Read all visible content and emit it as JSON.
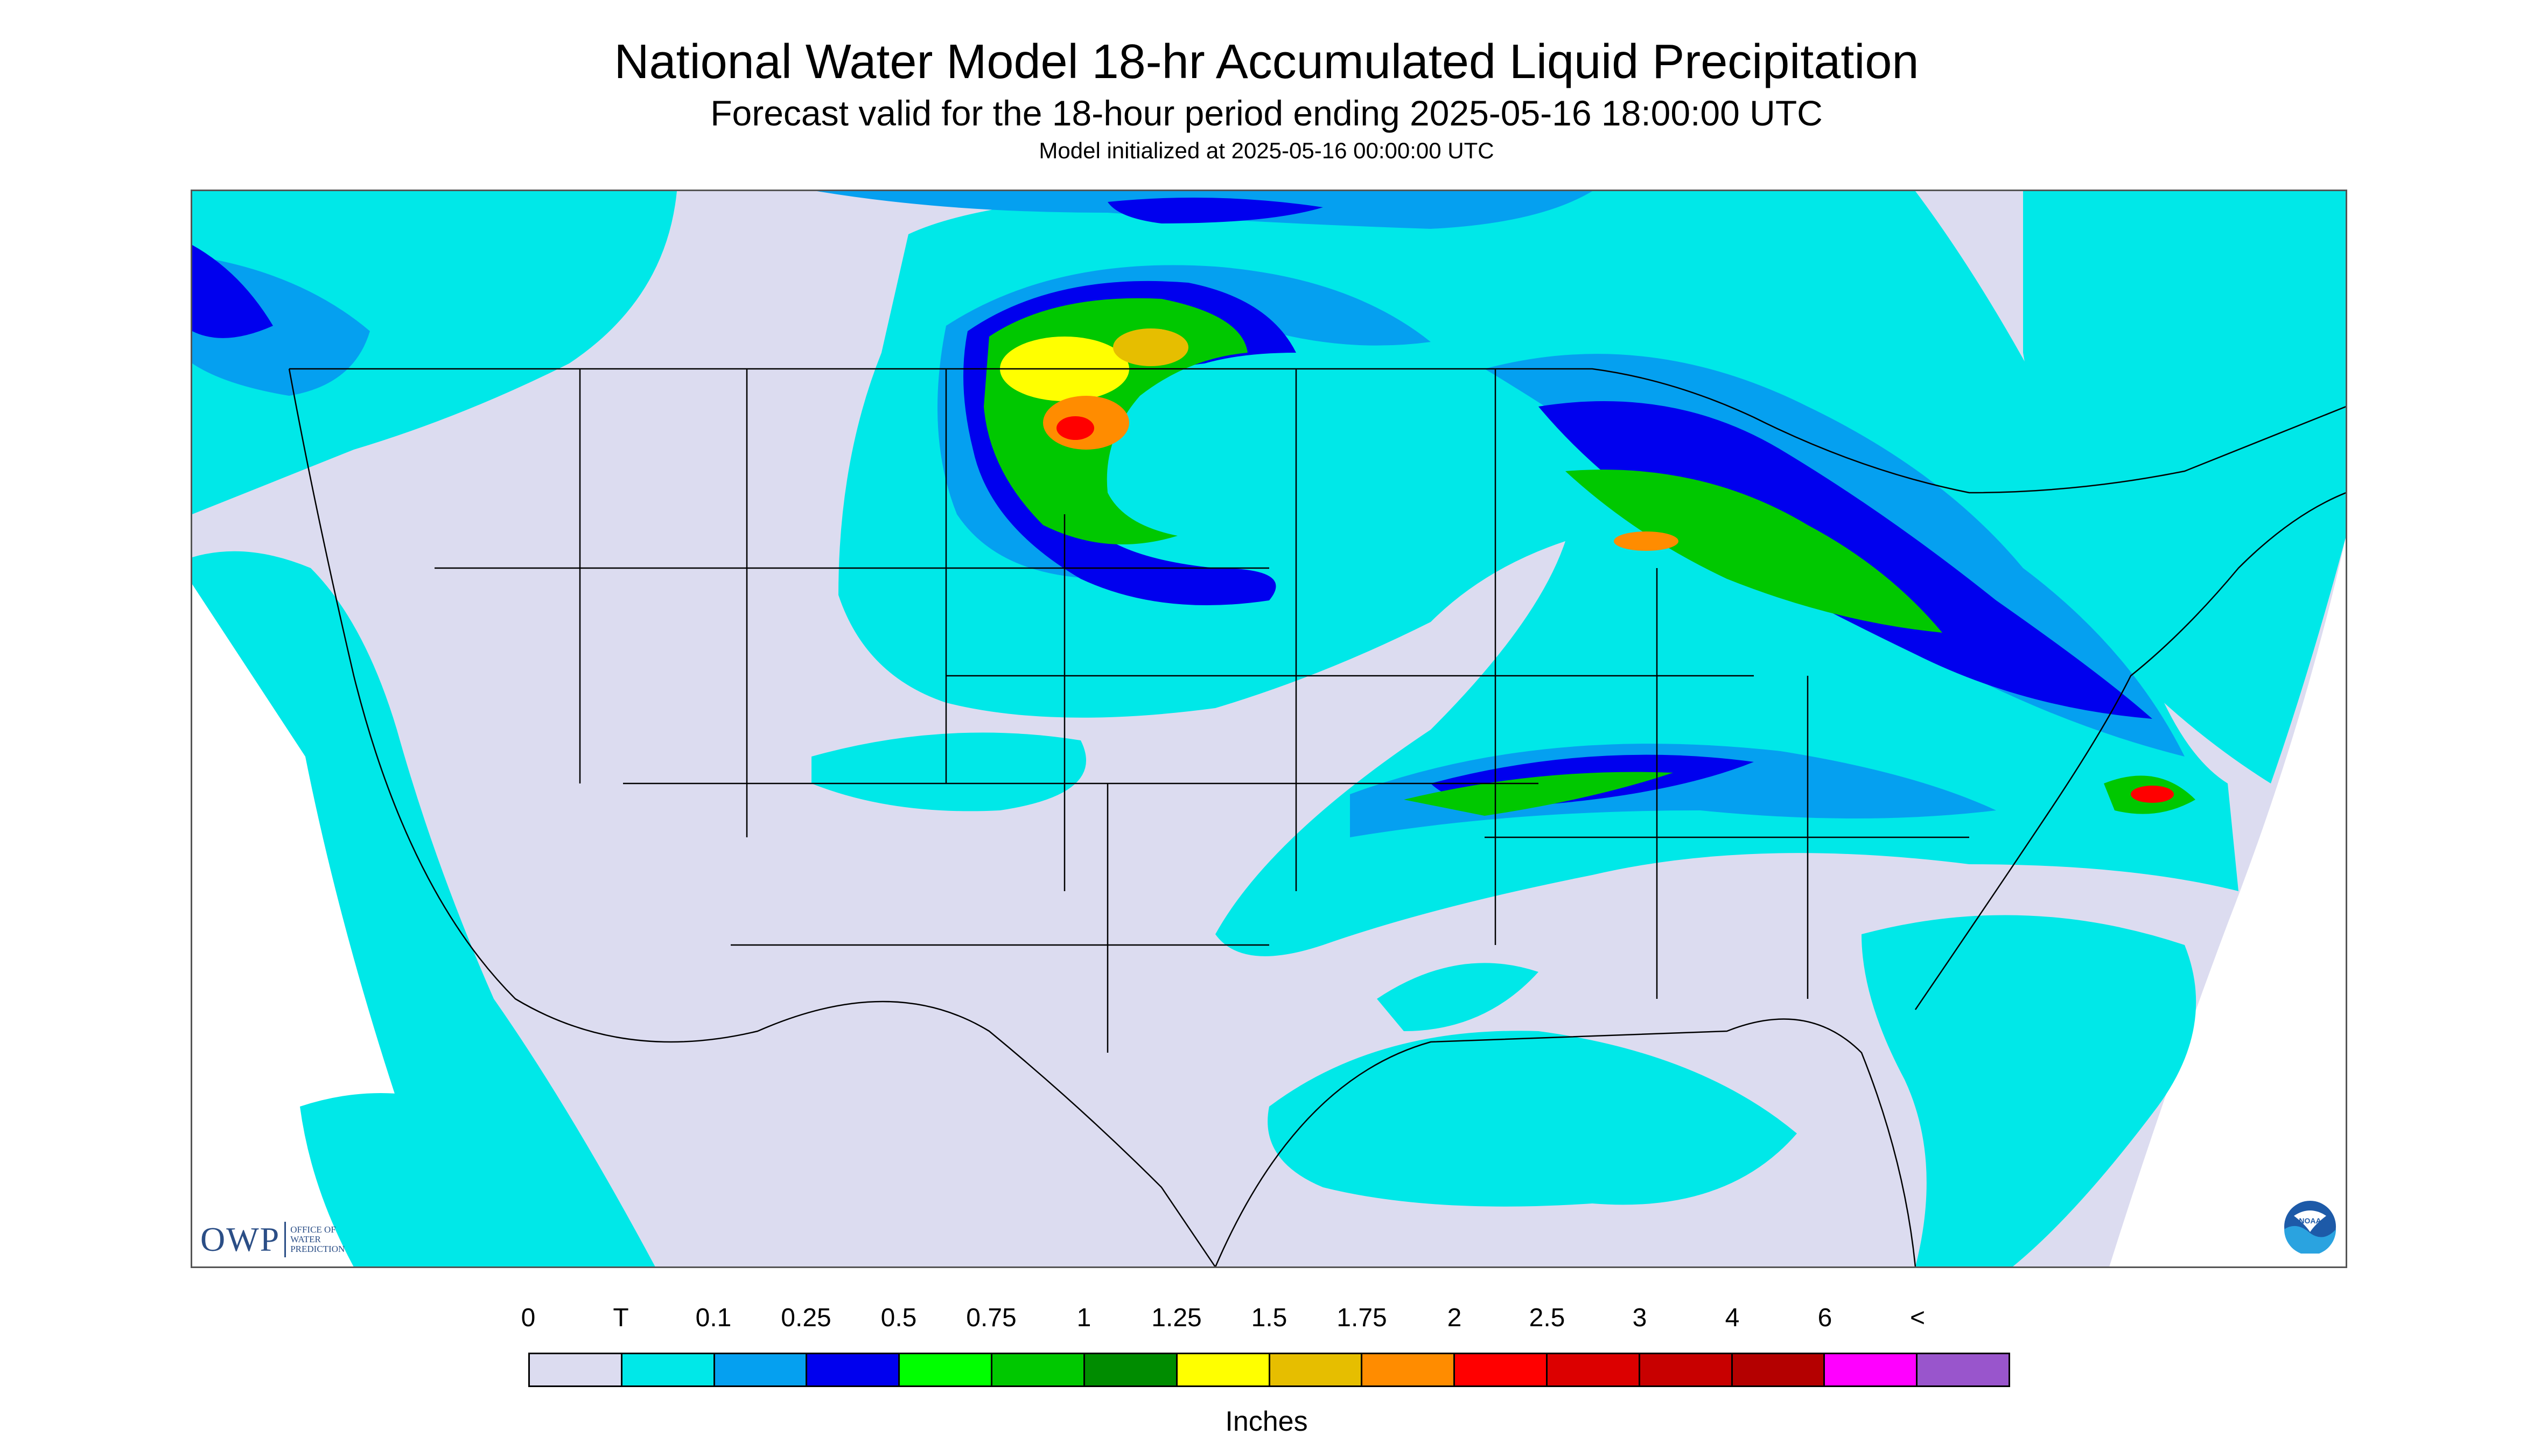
{
  "header": {
    "title": "National Water Model 18-hr Accumulated Liquid Precipitation",
    "subtitle": "Forecast valid for the 18-hour period ending 2025-05-16 18:00:00 UTC",
    "init_line": "Model initialized at 2025-05-16 00:00:00 UTC"
  },
  "logos": {
    "owp": {
      "abbr": "OWP",
      "name": "OFFICE OF WATER PREDICTION"
    },
    "noaa": {
      "text": "NOAA"
    }
  },
  "legend": {
    "labels": [
      "0",
      "T",
      "0.1",
      "0.25",
      "0.5",
      "0.75",
      "1",
      "1.25",
      "1.5",
      "1.75",
      "2",
      "2.5",
      "3",
      "4",
      "6",
      "<"
    ],
    "colors": [
      "#dcdcf0",
      "#00e8e8",
      "#05a0f0",
      "#0000ee",
      "#00ff00",
      "#00c800",
      "#008c00",
      "#ffff00",
      "#e6be00",
      "#ff8c00",
      "#ff0000",
      "#dc0000",
      "#c80000",
      "#b40000",
      "#ff00ff",
      "#9955cc"
    ],
    "units": "Inches"
  },
  "map": {
    "no_data_color": "#ffffff",
    "land_outline_color": "#000000"
  }
}
